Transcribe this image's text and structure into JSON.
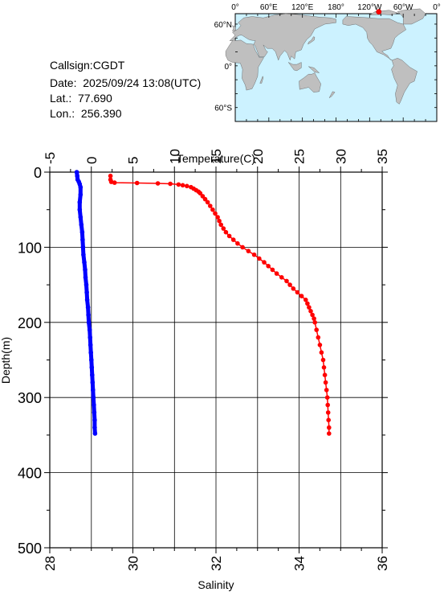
{
  "station": {
    "callsign": "Callsign:CGDT",
    "date": "Date:  2025/09/24 13:08(UTC)",
    "lat": "Lat.:  77.690",
    "lon": "Lon.:  256.390"
  },
  "map": {
    "top_labels": [
      "0°",
      "60°E",
      "120°E",
      "180°",
      "120°W",
      "60°W",
      "0°"
    ],
    "left_labels": [
      "60°N",
      "0°",
      "60°S"
    ],
    "ocean_color": "#ccf2ff",
    "land_color": "#bfbfbf",
    "marker_color": "#ff0000",
    "station_position": {
      "lon": 256.39,
      "lat": 77.69
    }
  },
  "chart_data": {
    "type": "line",
    "ylabel": "Depth(m)",
    "top_axis_label": "Temperature(C)",
    "bottom_axis_label": "Salinity",
    "depth_lim": [
      0,
      500
    ],
    "depth_ticks": [
      "0",
      "100",
      "200",
      "300",
      "400",
      "500"
    ],
    "temp_lim": [
      -5,
      35
    ],
    "temp_ticks": [
      "-5",
      "0",
      "5",
      "10",
      "15",
      "20",
      "25",
      "30",
      "35"
    ],
    "sal_lim": [
      28,
      36
    ],
    "sal_ticks": [
      "28",
      "30",
      "32",
      "34",
      "36"
    ],
    "grid": true,
    "series": [
      {
        "quantity": "temperature",
        "color": "#ff0000",
        "points": [
          [
            2.3,
            5
          ],
          [
            2.3,
            10
          ],
          [
            2.4,
            13
          ],
          [
            2.8,
            14
          ],
          [
            5.5,
            14.5
          ],
          [
            8,
            15
          ],
          [
            9.5,
            15.5
          ],
          [
            10.5,
            16.5
          ],
          [
            11,
            17.5
          ],
          [
            11.5,
            18.5
          ],
          [
            12,
            20
          ],
          [
            12.3,
            22
          ],
          [
            12.6,
            24
          ],
          [
            12.9,
            26
          ],
          [
            13.1,
            28
          ],
          [
            13.4,
            32
          ],
          [
            13.7,
            36
          ],
          [
            14,
            40
          ],
          [
            14.3,
            45
          ],
          [
            14.6,
            50
          ],
          [
            14.9,
            55
          ],
          [
            15.2,
            60
          ],
          [
            15.4,
            65
          ],
          [
            15.6,
            70
          ],
          [
            15.9,
            75
          ],
          [
            16.2,
            80
          ],
          [
            16.6,
            85
          ],
          [
            17.1,
            90
          ],
          [
            17.6,
            95
          ],
          [
            18.2,
            100
          ],
          [
            18.9,
            105
          ],
          [
            19.6,
            110
          ],
          [
            20.2,
            115
          ],
          [
            20.8,
            120
          ],
          [
            21.3,
            125
          ],
          [
            21.8,
            130
          ],
          [
            22.3,
            135
          ],
          [
            22.9,
            140
          ],
          [
            23.5,
            145
          ],
          [
            23.9,
            150
          ],
          [
            24.3,
            155
          ],
          [
            24.8,
            160
          ],
          [
            25.3,
            165
          ],
          [
            25.8,
            170
          ],
          [
            26,
            175
          ],
          [
            26.2,
            180
          ],
          [
            26.4,
            185
          ],
          [
            26.6,
            190
          ],
          [
            26.8,
            195
          ],
          [
            26.9,
            200
          ],
          [
            27.1,
            210
          ],
          [
            27.3,
            220
          ],
          [
            27.5,
            230
          ],
          [
            27.7,
            240
          ],
          [
            27.9,
            250
          ],
          [
            28,
            260
          ],
          [
            28.1,
            270
          ],
          [
            28.2,
            280
          ],
          [
            28.3,
            290
          ],
          [
            28.4,
            300
          ],
          [
            28.45,
            310
          ],
          [
            28.5,
            320
          ],
          [
            28.55,
            330
          ],
          [
            28.6,
            340
          ],
          [
            28.6,
            348
          ]
        ]
      },
      {
        "quantity": "salinity",
        "color": "#0000ff",
        "points": [
          [
            28.65,
            0
          ],
          [
            28.66,
            5
          ],
          [
            28.67,
            10
          ],
          [
            28.7,
            13
          ],
          [
            28.72,
            16
          ],
          [
            28.74,
            20
          ],
          [
            28.74,
            30
          ],
          [
            28.72,
            40
          ],
          [
            28.72,
            50
          ],
          [
            28.74,
            60
          ],
          [
            28.76,
            70
          ],
          [
            28.78,
            80
          ],
          [
            28.79,
            90
          ],
          [
            28.8,
            100
          ],
          [
            28.81,
            110
          ],
          [
            28.83,
            120
          ],
          [
            28.85,
            130
          ],
          [
            28.86,
            140
          ],
          [
            28.88,
            150
          ],
          [
            28.89,
            160
          ],
          [
            28.9,
            170
          ],
          [
            28.92,
            180
          ],
          [
            28.93,
            190
          ],
          [
            28.94,
            200
          ],
          [
            28.96,
            210
          ],
          [
            28.97,
            220
          ],
          [
            28.98,
            230
          ],
          [
            28.99,
            240
          ],
          [
            29,
            250
          ],
          [
            29.01,
            260
          ],
          [
            29.02,
            270
          ],
          [
            29.03,
            280
          ],
          [
            29.04,
            290
          ],
          [
            29.05,
            300
          ],
          [
            29.06,
            310
          ],
          [
            29.07,
            320
          ],
          [
            29.08,
            330
          ],
          [
            29.08,
            340
          ],
          [
            29.09,
            348
          ]
        ]
      }
    ]
  }
}
